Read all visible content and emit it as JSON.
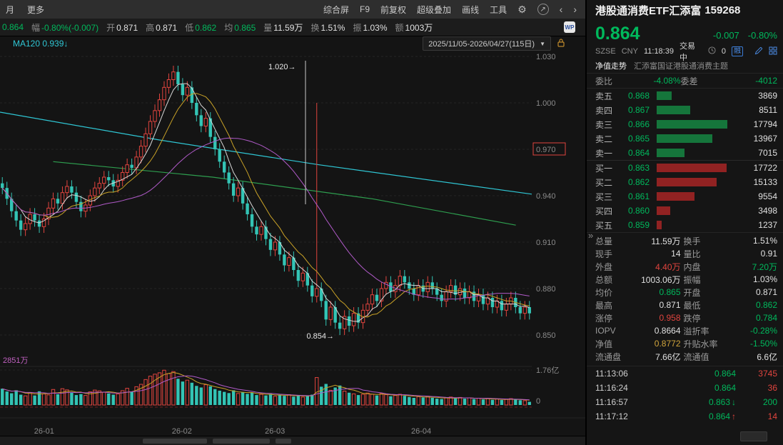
{
  "colors": {
    "up": "#e0443e",
    "down": "#33c4b5",
    "green_text": "#00b85c",
    "red_text": "#e0443e",
    "yellow_text": "#d0a43c",
    "ma5": "#d8d8d8",
    "ma10": "#c9a227",
    "ma30": "#b05ac8",
    "ma_long1": "#2fc6d4",
    "ma_long2": "#2e9e4f",
    "ask_bar": "#15803f",
    "bid_bar": "#9e2424",
    "axis_text": "#8a8a8a",
    "vol_ma_label": "#c060c0"
  },
  "toolbar": {
    "left": [
      "月",
      "更多"
    ],
    "menu": [
      "综合屏",
      "F9",
      "前复权",
      "超级叠加",
      "画线",
      "工具"
    ]
  },
  "quote_bar": {
    "items": [
      {
        "label": "",
        "value": "0.864",
        "color": "green"
      },
      {
        "label": "幅",
        "value": "-0.80%(-0.007)",
        "color": "green"
      },
      {
        "label": "开",
        "value": "0.871",
        "color": "white"
      },
      {
        "label": "高",
        "value": "0.871",
        "color": "white"
      },
      {
        "label": "低",
        "value": "0.862",
        "color": "green"
      },
      {
        "label": "均",
        "value": "0.865",
        "color": "green"
      },
      {
        "label": "量",
        "value": "11.59万",
        "color": "white"
      },
      {
        "label": "换",
        "value": "1.51%",
        "color": "white"
      },
      {
        "label": "振",
        "value": "1.03%",
        "color": "white"
      },
      {
        "label": "额",
        "value": "1003万",
        "color": "white"
      }
    ],
    "wp_badge": "WP"
  },
  "indicator_bar": {
    "ma_label": "MA120",
    "ma_value": "0.939↓",
    "date_range": "2025/11/05-2026/04/27(115日)",
    "dropdown_arrow": "▼"
  },
  "chart_data": {
    "type": "candlestick",
    "title": "港股通消费ETF汇添富 159268 日K 前复权",
    "y_ticks": [
      "1.030",
      "1.000",
      "0.970",
      "0.940",
      "0.910",
      "0.880",
      "0.850"
    ],
    "y_tick_values": [
      1.03,
      1.0,
      0.97,
      0.94,
      0.91,
      0.88,
      0.85
    ],
    "boxed_y_tick": "0.970",
    "x_ticks": [
      {
        "label": "26-01",
        "pct": 8.3
      },
      {
        "label": "26-02",
        "pct": 34.2
      },
      {
        "label": "26-03",
        "pct": 51.7
      },
      {
        "label": "26-04",
        "pct": 79.2
      }
    ],
    "high_annotation": "1.020",
    "low_annotation": "0.854",
    "vol_ticks": [
      "1.76亿",
      "0"
    ],
    "vol_ma_label": "2851万",
    "first_open": 0.948,
    "spike": {
      "index": 68,
      "high": 1.0
    },
    "closes": [
      0.945,
      0.938,
      0.93,
      0.924,
      0.918,
      0.922,
      0.928,
      0.924,
      0.92,
      0.925,
      0.932,
      0.938,
      0.935,
      0.942,
      0.946,
      0.942,
      0.936,
      0.93,
      0.934,
      0.94,
      0.945,
      0.948,
      0.952,
      0.95,
      0.946,
      0.95,
      0.955,
      0.96,
      0.958,
      0.965,
      0.972,
      0.98,
      0.988,
      0.995,
      1.002,
      1.01,
      1.015,
      1.02,
      1.012,
      1.005,
      1.01,
      1.0,
      0.992,
      0.985,
      0.99,
      0.978,
      0.97,
      0.962,
      0.955,
      0.948,
      0.94,
      0.945,
      0.935,
      0.928,
      0.92,
      0.915,
      0.92,
      0.912,
      0.905,
      0.91,
      0.902,
      0.895,
      0.9,
      0.892,
      0.885,
      0.89,
      0.882,
      0.875,
      0.88,
      0.872,
      0.86,
      0.868,
      0.858,
      0.854,
      0.862,
      0.856,
      0.864,
      0.858,
      0.866,
      0.87,
      0.876,
      0.872,
      0.88,
      0.884,
      0.878,
      0.882,
      0.888,
      0.884,
      0.88,
      0.876,
      0.882,
      0.878,
      0.884,
      0.88,
      0.876,
      0.872,
      0.878,
      0.882,
      0.876,
      0.88,
      0.874,
      0.878,
      0.872,
      0.876,
      0.87,
      0.874,
      0.868,
      0.872,
      0.866,
      0.87,
      0.874,
      0.868,
      0.864,
      0.868,
      0.864
    ],
    "volumes_wan": [
      8200,
      6800,
      5900,
      7400,
      5200,
      4600,
      6300,
      4800,
      6900,
      5600,
      5100,
      7800,
      5400,
      8200,
      7600,
      6200,
      5000,
      5500,
      4800,
      6600,
      7500,
      7100,
      6400,
      5800,
      5200,
      5600,
      7200,
      8400,
      6800,
      9200,
      10400,
      12800,
      14500,
      15500,
      16200,
      17500,
      15800,
      16800,
      13200,
      11800,
      12500,
      11200,
      9600,
      8800,
      10200,
      9400,
      8000,
      7200,
      6600,
      6000,
      7400,
      5800,
      6400,
      5600,
      6200,
      5000,
      5400,
      4800,
      5600,
      4400,
      5000,
      4600,
      5200,
      4200,
      4800,
      4000,
      4600,
      5200,
      13800,
      9200,
      10600,
      7400,
      8800,
      9800,
      7000,
      6200,
      5600,
      5000,
      5400,
      6000,
      5400,
      4800,
      5800,
      5200,
      4400,
      4800,
      5400,
      4600,
      4000,
      3600,
      4200,
      3800,
      4400,
      3600,
      3200,
      3000,
      3600,
      4000,
      3400,
      3800,
      3200,
      3600,
      3000,
      3400,
      2800,
      3200,
      2600,
      3000,
      2500,
      2800,
      3200,
      2700,
      2400,
      2200,
      1600
    ],
    "overlays": [
      {
        "name": "long-ma-1",
        "color_key": "ma_long1",
        "points": [
          [
            0,
            0.994
          ],
          [
            30,
            0.976
          ],
          [
            60,
            0.96
          ],
          [
            100,
            0.941
          ]
        ]
      },
      {
        "name": "long-ma-2",
        "color_key": "ma_long2",
        "points": [
          [
            10,
            0.962
          ],
          [
            40,
            0.952
          ],
          [
            70,
            0.938
          ],
          [
            97,
            0.921
          ]
        ]
      }
    ]
  },
  "panel": {
    "title": "港股通消费ETF汇添富",
    "code": "159268",
    "price": "0.864",
    "change": "-0.007",
    "change_pct": "-0.80%",
    "info": {
      "exchange": "SZSE",
      "currency": "CNY",
      "time": "11:18:39",
      "status": "交易中",
      "delay": "0",
      "margin": "融"
    },
    "nav_label": "净值走势",
    "fund_name": "汇添富国证港股通消费主题",
    "weibi": {
      "label": "委比",
      "value": "-4.08%",
      "label2": "委差",
      "value2": "-4012"
    },
    "asks": [
      {
        "label": "卖五",
        "price": "0.868",
        "vol": "3869",
        "v": 3869
      },
      {
        "label": "卖四",
        "price": "0.867",
        "vol": "8511",
        "v": 8511
      },
      {
        "label": "卖三",
        "price": "0.866",
        "vol": "17794",
        "v": 17794
      },
      {
        "label": "卖二",
        "price": "0.865",
        "vol": "13967",
        "v": 13967
      },
      {
        "label": "卖一",
        "price": "0.864",
        "vol": "7015",
        "v": 7015
      }
    ],
    "bids": [
      {
        "label": "买一",
        "price": "0.863",
        "vol": "17722",
        "v": 17722
      },
      {
        "label": "买二",
        "price": "0.862",
        "vol": "15133",
        "v": 15133
      },
      {
        "label": "买三",
        "price": "0.861",
        "vol": "9554",
        "v": 9554
      },
      {
        "label": "买四",
        "price": "0.860",
        "vol": "3498",
        "v": 3498
      },
      {
        "label": "买五",
        "price": "0.859",
        "vol": "1237",
        "v": 1237
      }
    ],
    "stats": [
      {
        "l1": "总量",
        "v1": "11.59万",
        "c1": "white",
        "l2": "换手",
        "v2": "1.51%",
        "c2": "white"
      },
      {
        "l1": "现手",
        "v1": "14",
        "c1": "white",
        "l2": "量比",
        "v2": "0.91",
        "c2": "white"
      },
      {
        "l1": "外盘",
        "v1": "4.40万",
        "c1": "red",
        "l2": "内盘",
        "v2": "7.20万",
        "c2": "green"
      },
      {
        "l1": "总额",
        "v1": "1003.06万",
        "c1": "white",
        "l2": "振幅",
        "v2": "1.03%",
        "c2": "white"
      },
      {
        "l1": "均价",
        "v1": "0.865",
        "c1": "green",
        "l2": "开盘",
        "v2": "0.871",
        "c2": "white"
      },
      {
        "l1": "最高",
        "v1": "0.871",
        "c1": "white",
        "l2": "最低",
        "v2": "0.862",
        "c2": "green"
      },
      {
        "l1": "涨停",
        "v1": "0.958",
        "c1": "red",
        "l2": "跌停",
        "v2": "0.784",
        "c2": "green"
      },
      {
        "l1": "IOPV",
        "v1": "0.8664",
        "c1": "white",
        "l2": "溢折率",
        "v2": "-0.28%",
        "c2": "green"
      },
      {
        "l1": "净值",
        "v1": "0.8772",
        "c1": "yellow",
        "l2": "升贴水率",
        "v2": "-1.50%",
        "c2": "green"
      },
      {
        "l1": "流通盘",
        "v1": "7.66亿",
        "c1": "white",
        "l2": "流通值",
        "v2": "6.6亿",
        "c2": "white"
      }
    ],
    "ticks": [
      {
        "time": "11:13:06",
        "price": "0.864",
        "price_color": "green",
        "arrow": "",
        "arrow_color": "white",
        "vol": "3745",
        "vol_color": "red"
      },
      {
        "time": "11:16:24",
        "price": "0.864",
        "price_color": "green",
        "arrow": "",
        "arrow_color": "white",
        "vol": "36",
        "vol_color": "red"
      },
      {
        "time": "11:16:57",
        "price": "0.863",
        "price_color": "green",
        "arrow": "↓",
        "arrow_color": "green",
        "vol": "200",
        "vol_color": "green"
      },
      {
        "time": "11:17:12",
        "price": "0.864",
        "price_color": "green",
        "arrow": "↑",
        "arrow_color": "red",
        "vol": "14",
        "vol_color": "red"
      }
    ],
    "expander": "»"
  }
}
